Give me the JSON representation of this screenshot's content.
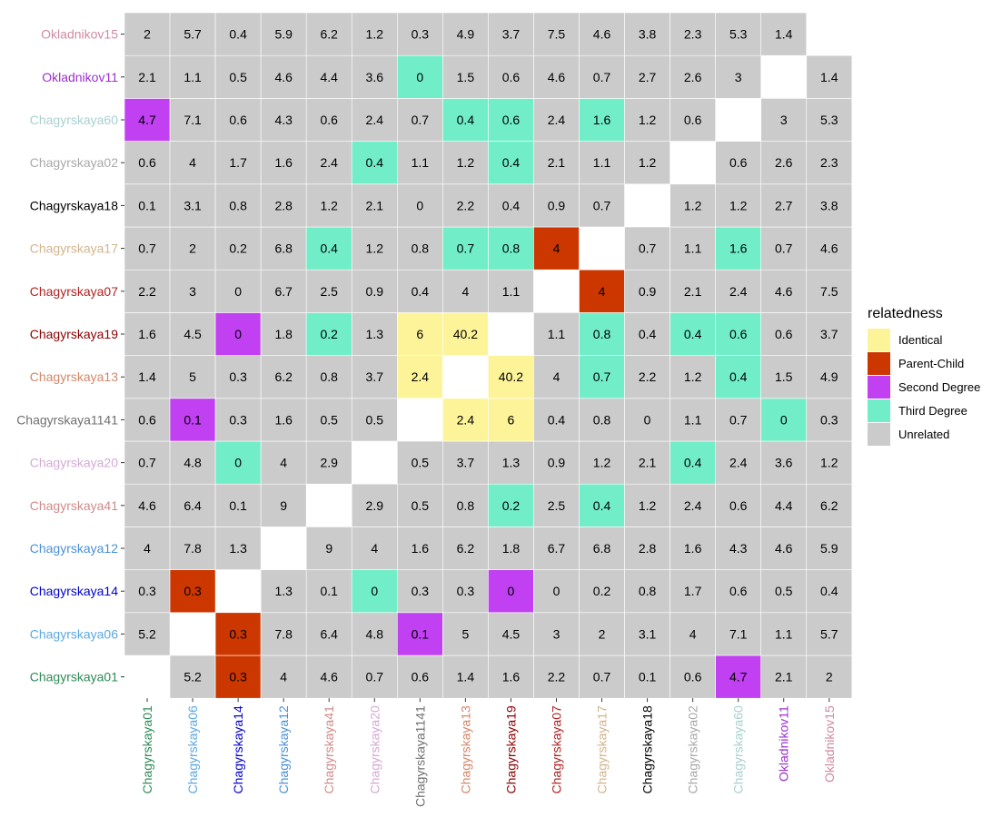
{
  "chart_data": {
    "type": "heatmap",
    "title": "",
    "xlabel": "",
    "ylabel": "",
    "samples": [
      "Chagyrskaya01",
      "Chagyrskaya06",
      "Chagyrskaya14",
      "Chagyrskaya12",
      "Chagyrskaya41",
      "Chagyrskaya20",
      "Chagyrskaya1141",
      "Chagyrskaya13",
      "Chagyrskaya19",
      "Chagyrskaya07",
      "Chagyrskaya17",
      "Chagyrskaya18",
      "Chagyrskaya02",
      "Chagyrskaya60",
      "Okladnikov11",
      "Okladnikov15"
    ],
    "label_colors": [
      "#2e8b57",
      "#5ba8e0",
      "#0000cd",
      "#4a90d9",
      "#d18a8a",
      "#d4aad4",
      "#707070",
      "#d2876a",
      "#8b0000",
      "#b22222",
      "#d2b48c",
      "#000000",
      "#a9a9a9",
      "#a8d0d0",
      "#9932cc",
      "#d08ba0"
    ],
    "values": [
      [
        "",
        "5.2",
        "0.3",
        "4",
        "4.6",
        "0.7",
        "0.6",
        "1.4",
        "1.6",
        "2.2",
        "0.7",
        "0.1",
        "0.6",
        "4.7",
        "2.1",
        "2"
      ],
      [
        "5.2",
        "",
        "0.3",
        "7.8",
        "6.4",
        "4.8",
        "0.1",
        "5",
        "4.5",
        "3",
        "2",
        "3.1",
        "4",
        "7.1",
        "1.1",
        "5.7"
      ],
      [
        "0.3",
        "0.3",
        "",
        "1.3",
        "0.1",
        "0",
        "0.3",
        "0.3",
        "0",
        "0",
        "0.2",
        "0.8",
        "1.7",
        "0.6",
        "0.5",
        "0.4"
      ],
      [
        "4",
        "7.8",
        "1.3",
        "",
        "9",
        "4",
        "1.6",
        "6.2",
        "1.8",
        "6.7",
        "6.8",
        "2.8",
        "1.6",
        "4.3",
        "4.6",
        "5.9"
      ],
      [
        "4.6",
        "6.4",
        "0.1",
        "9",
        "",
        "2.9",
        "0.5",
        "0.8",
        "0.2",
        "2.5",
        "0.4",
        "1.2",
        "2.4",
        "0.6",
        "4.4",
        "6.2"
      ],
      [
        "0.7",
        "4.8",
        "0",
        "4",
        "2.9",
        "",
        "0.5",
        "3.7",
        "1.3",
        "0.9",
        "1.2",
        "2.1",
        "0.4",
        "2.4",
        "3.6",
        "1.2"
      ],
      [
        "0.6",
        "0.1",
        "0.3",
        "1.6",
        "0.5",
        "0.5",
        "",
        "2.4",
        "6",
        "0.4",
        "0.8",
        "0",
        "1.1",
        "0.7",
        "0",
        "0.3"
      ],
      [
        "1.4",
        "5",
        "0.3",
        "6.2",
        "0.8",
        "3.7",
        "2.4",
        "",
        "40.2",
        "4",
        "0.7",
        "2.2",
        "1.2",
        "0.4",
        "1.5",
        "4.9"
      ],
      [
        "1.6",
        "4.5",
        "0",
        "1.8",
        "0.2",
        "1.3",
        "6",
        "40.2",
        "",
        "1.1",
        "0.8",
        "0.4",
        "0.4",
        "0.6",
        "0.6",
        "3.7"
      ],
      [
        "2.2",
        "3",
        "0",
        "6.7",
        "2.5",
        "0.9",
        "0.4",
        "4",
        "1.1",
        "",
        "4",
        "0.9",
        "2.1",
        "2.4",
        "4.6",
        "7.5"
      ],
      [
        "0.7",
        "2",
        "0.2",
        "6.8",
        "0.4",
        "1.2",
        "0.8",
        "0.7",
        "0.8",
        "4",
        "",
        "0.7",
        "1.1",
        "1.6",
        "0.7",
        "4.6"
      ],
      [
        "0.1",
        "3.1",
        "0.8",
        "2.8",
        "1.2",
        "2.1",
        "0",
        "2.2",
        "0.4",
        "0.9",
        "0.7",
        "",
        "1.2",
        "1.2",
        "2.7",
        "3.8"
      ],
      [
        "0.6",
        "4",
        "1.7",
        "1.6",
        "2.4",
        "0.4",
        "1.1",
        "1.2",
        "0.4",
        "2.1",
        "1.1",
        "1.2",
        "",
        "0.6",
        "2.6",
        "2.3"
      ],
      [
        "4.7",
        "7.1",
        "0.6",
        "4.3",
        "0.6",
        "2.4",
        "0.7",
        "0.4",
        "0.6",
        "2.4",
        "1.6",
        "1.2",
        "0.6",
        "",
        "3",
        "5.3"
      ],
      [
        "2.1",
        "1.1",
        "0.5",
        "4.6",
        "4.4",
        "3.6",
        "0",
        "1.5",
        "0.6",
        "4.6",
        "0.7",
        "2.7",
        "2.6",
        "3",
        "",
        "1.4"
      ],
      [
        "2",
        "5.7",
        "0.4",
        "5.9",
        "6.2",
        "1.2",
        "0.3",
        "4.9",
        "3.7",
        "7.5",
        "4.6",
        "3.8",
        "2.3",
        "5.3",
        "1.4",
        ""
      ]
    ],
    "categories": [
      [
        "",
        "U",
        "P",
        "U",
        "U",
        "U",
        "U",
        "U",
        "U",
        "U",
        "U",
        "U",
        "U",
        "S",
        "U",
        "U"
      ],
      [
        "U",
        "",
        "P",
        "U",
        "U",
        "U",
        "S",
        "U",
        "U",
        "U",
        "U",
        "U",
        "U",
        "U",
        "U",
        "U"
      ],
      [
        "U",
        "P",
        "",
        "U",
        "U",
        "T",
        "U",
        "U",
        "S",
        "U",
        "U",
        "U",
        "U",
        "U",
        "U",
        "U"
      ],
      [
        "U",
        "U",
        "U",
        "",
        "U",
        "U",
        "U",
        "U",
        "U",
        "U",
        "U",
        "U",
        "U",
        "U",
        "U",
        "U"
      ],
      [
        "U",
        "U",
        "U",
        "U",
        "",
        "U",
        "U",
        "U",
        "T",
        "U",
        "T",
        "U",
        "U",
        "U",
        "U",
        "U"
      ],
      [
        "U",
        "U",
        "T",
        "U",
        "U",
        "",
        "U",
        "U",
        "U",
        "U",
        "U",
        "U",
        "T",
        "U",
        "U",
        "U"
      ],
      [
        "U",
        "S",
        "U",
        "U",
        "U",
        "U",
        "",
        "I",
        "I",
        "U",
        "U",
        "U",
        "U",
        "U",
        "T",
        "U"
      ],
      [
        "U",
        "U",
        "U",
        "U",
        "U",
        "U",
        "I",
        "",
        "I",
        "U",
        "T",
        "U",
        "U",
        "T",
        "U",
        "U"
      ],
      [
        "U",
        "U",
        "S",
        "U",
        "T",
        "U",
        "I",
        "I",
        "",
        "U",
        "T",
        "U",
        "T",
        "T",
        "U",
        "U"
      ],
      [
        "U",
        "U",
        "U",
        "U",
        "U",
        "U",
        "U",
        "U",
        "U",
        "",
        "P",
        "U",
        "U",
        "U",
        "U",
        "U"
      ],
      [
        "U",
        "U",
        "U",
        "U",
        "T",
        "U",
        "U",
        "T",
        "T",
        "P",
        "",
        "U",
        "U",
        "T",
        "U",
        "U"
      ],
      [
        "U",
        "U",
        "U",
        "U",
        "U",
        "U",
        "U",
        "U",
        "U",
        "U",
        "U",
        "",
        "U",
        "U",
        "U",
        "U"
      ],
      [
        "U",
        "U",
        "U",
        "U",
        "U",
        "T",
        "U",
        "U",
        "T",
        "U",
        "U",
        "U",
        "",
        "U",
        "U",
        "U"
      ],
      [
        "S",
        "U",
        "U",
        "U",
        "U",
        "U",
        "U",
        "T",
        "T",
        "U",
        "T",
        "U",
        "U",
        "",
        "U",
        "U"
      ],
      [
        "U",
        "U",
        "U",
        "U",
        "U",
        "U",
        "T",
        "U",
        "U",
        "U",
        "U",
        "U",
        "U",
        "U",
        "",
        "U"
      ],
      [
        "U",
        "U",
        "U",
        "U",
        "U",
        "U",
        "U",
        "U",
        "U",
        "U",
        "U",
        "U",
        "U",
        "U",
        "U",
        ""
      ]
    ],
    "legend": {
      "title": "relatedness",
      "placement": "right",
      "items": [
        {
          "key": "I",
          "label": "Identical",
          "color": "#fdf49a"
        },
        {
          "key": "P",
          "label": "Parent-Child",
          "color": "#cc3700"
        },
        {
          "key": "S",
          "label": "Second Degree",
          "color": "#c040f2"
        },
        {
          "key": "T",
          "label": "Third Degree",
          "color": "#71eec8"
        },
        {
          "key": "U",
          "label": "Unrelated",
          "color": "#cbcbcb"
        }
      ]
    },
    "grid": false
  }
}
